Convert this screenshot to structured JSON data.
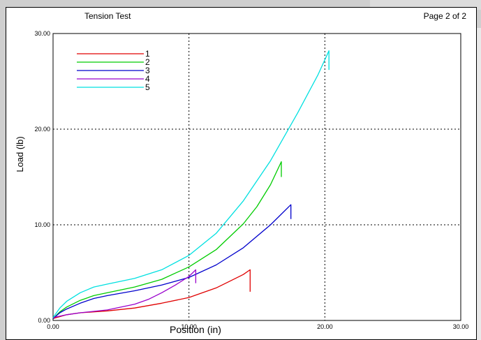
{
  "header": {
    "title": "Tension Test",
    "page_label": "Page 2 of 2"
  },
  "colors": {
    "grid": "#000000",
    "series": [
      "#e00000",
      "#00cc00",
      "#0000cc",
      "#9900cc",
      "#00e0e0"
    ]
  },
  "chart_data": {
    "type": "line",
    "xlabel": "Position (in)",
    "ylabel": "Load (lb)",
    "xlim": [
      0,
      30
    ],
    "ylim": [
      0,
      30
    ],
    "xticks": [
      "0.00",
      "10.00",
      "20.00",
      "30.00"
    ],
    "yticks": [
      "0.00",
      "10.00",
      "20.00",
      "30.00"
    ],
    "grid": "dotted at 10.00 and 20.00",
    "legend_position": "top-left",
    "series": [
      {
        "name": "1",
        "color": "#e00000",
        "x": [
          0,
          1,
          2,
          4,
          6,
          8,
          10,
          12,
          13,
          14,
          14.5,
          14.5
        ],
        "y": [
          0.2,
          0.6,
          0.8,
          1.0,
          1.3,
          1.8,
          2.4,
          3.4,
          4.1,
          4.8,
          5.3,
          3.0
        ]
      },
      {
        "name": "2",
        "color": "#00cc00",
        "x": [
          0,
          0.5,
          1,
          2,
          3,
          4,
          6,
          8,
          10,
          12,
          14,
          15,
          16,
          16.8,
          16.8
        ],
        "y": [
          0.2,
          0.9,
          1.4,
          2.1,
          2.6,
          2.9,
          3.5,
          4.3,
          5.6,
          7.4,
          10.1,
          11.9,
          14.2,
          16.6,
          15.0
        ]
      },
      {
        "name": "3",
        "color": "#0000cc",
        "x": [
          0,
          0.5,
          1,
          2,
          3,
          4,
          6,
          8,
          10,
          12,
          14,
          16,
          17.5,
          17.5
        ],
        "y": [
          0.2,
          0.8,
          1.2,
          1.8,
          2.3,
          2.6,
          3.1,
          3.7,
          4.5,
          5.8,
          7.6,
          10.0,
          12.1,
          10.6
        ]
      },
      {
        "name": "4",
        "color": "#9900cc",
        "x": [
          0,
          1,
          2,
          4,
          6,
          7,
          8,
          9,
          10,
          10.5,
          10.5
        ],
        "y": [
          0.3,
          0.6,
          0.8,
          1.1,
          1.7,
          2.2,
          2.9,
          3.7,
          4.6,
          5.3,
          3.9
        ]
      },
      {
        "name": "5",
        "color": "#00e0e0",
        "x": [
          0,
          0.5,
          1,
          2,
          3,
          4,
          6,
          8,
          10,
          12,
          14,
          16,
          18,
          19.5,
          20.3,
          20.3
        ],
        "y": [
          0.3,
          1.3,
          2.0,
          2.9,
          3.5,
          3.8,
          4.4,
          5.3,
          6.8,
          9.1,
          12.5,
          16.7,
          21.7,
          25.7,
          28.2,
          26.2
        ]
      }
    ]
  }
}
